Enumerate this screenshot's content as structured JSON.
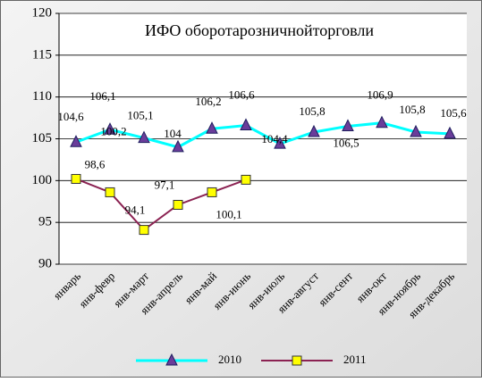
{
  "chart_data": {
    "type": "line",
    "title": "ИФО оборотарозничнойторговли",
    "categories": [
      "январь",
      "янв-февр",
      "янв-март",
      "янв-апрель",
      "янв-май",
      "янв-июнь",
      "янв-июль",
      "янв-август",
      "янв-сент",
      "янв-окт",
      "янв-ноябрь",
      "янв-декабрь"
    ],
    "series": [
      {
        "name": "2010",
        "color": "#00ffff",
        "marker": "triangle",
        "marker_color": "#6a3d9a",
        "values": [
          104.6,
          106.1,
          105.1,
          104,
          106.2,
          106.6,
          104.4,
          105.8,
          106.5,
          106.9,
          105.8,
          105.6
        ],
        "value_labels": [
          "104,6",
          "106,1",
          "105,1",
          "104",
          "106,2",
          "106,6",
          "104,4",
          "105,8",
          "106,5",
          "106,9",
          "105,8",
          "105,6"
        ]
      },
      {
        "name": "2011",
        "color": "#8b2252",
        "marker": "square",
        "marker_color": "#ffff00",
        "values": [
          100.2,
          98.6,
          94.1,
          97.1,
          98.6,
          100.1,
          null,
          null,
          null,
          null,
          null,
          null
        ],
        "value_labels": [
          "100,2",
          "98,6",
          "94,1",
          "97,1",
          null,
          "100,1",
          null,
          null,
          null,
          null,
          null,
          null
        ]
      }
    ],
    "ylim": [
      90,
      120
    ],
    "yticks": [
      90,
      95,
      100,
      105,
      110,
      115,
      120
    ],
    "grid": true,
    "legend": "bottom"
  }
}
